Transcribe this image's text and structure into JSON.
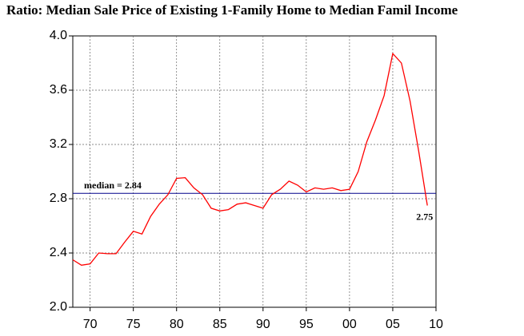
{
  "chart_data": {
    "type": "line",
    "title": "Ratio: Median Sale Price of Existing 1-Family Home to Median Famil Income",
    "x": [
      1968,
      1969,
      1970,
      1971,
      1972,
      1973,
      1974,
      1975,
      1976,
      1977,
      1978,
      1979,
      1980,
      1981,
      1982,
      1983,
      1984,
      1985,
      1986,
      1987,
      1988,
      1989,
      1990,
      1991,
      1992,
      1993,
      1994,
      1995,
      1996,
      1997,
      1998,
      1999,
      2000,
      2001,
      2002,
      2003,
      2004,
      2005,
      2006,
      2007,
      2008,
      2009
    ],
    "series": [
      {
        "color": "#ff0000",
        "values": [
          2.35,
          2.31,
          2.32,
          2.4,
          2.395,
          2.395,
          2.48,
          2.56,
          2.54,
          2.67,
          2.76,
          2.83,
          2.95,
          2.955,
          2.88,
          2.83,
          2.73,
          2.71,
          2.72,
          2.76,
          2.77,
          2.75,
          2.73,
          2.83,
          2.87,
          2.93,
          2.9,
          2.85,
          2.88,
          2.87,
          2.88,
          2.86,
          2.87,
          3.0,
          3.22,
          3.38,
          3.56,
          3.87,
          3.8,
          3.52,
          3.15,
          2.75
        ]
      }
    ],
    "median": {
      "value": 2.84,
      "label": "median = 2.84",
      "color": "#00008b"
    },
    "end_label": "2.75",
    "xlim": [
      1968,
      2010
    ],
    "xticks": [
      {
        "value": 1970,
        "label": "70"
      },
      {
        "value": 1975,
        "label": "75"
      },
      {
        "value": 1980,
        "label": "80"
      },
      {
        "value": 1985,
        "label": "85"
      },
      {
        "value": 1990,
        "label": "90"
      },
      {
        "value": 1995,
        "label": "95"
      },
      {
        "value": 2000,
        "label": "00"
      },
      {
        "value": 2005,
        "label": "05"
      },
      {
        "value": 2010,
        "label": "10"
      }
    ],
    "ylim": [
      2.0,
      4.0
    ],
    "yticks": [
      {
        "value": 2,
        "label": "2.0"
      },
      2.4,
      2.8,
      3.2,
      3.6,
      {
        "value": 4,
        "label": "4.0"
      }
    ],
    "grid": true
  }
}
